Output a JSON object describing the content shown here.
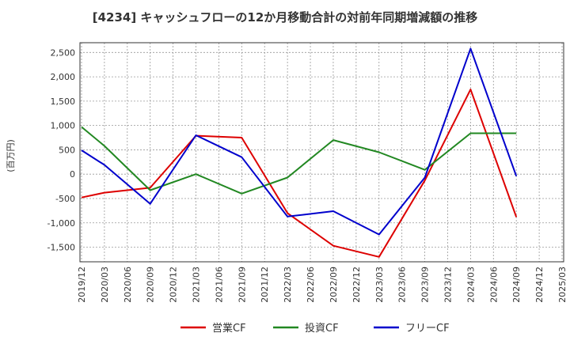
{
  "chart_data": {
    "type": "line",
    "title": "[4234]  キャッシュフローの12か月移動合計の対前年同期増減額の推移",
    "xlabel": "",
    "ylabel": "(百万円)",
    "x": [
      "2019/12",
      "2020/03",
      "2020/06",
      "2020/09",
      "2020/12",
      "2021/03",
      "2021/06",
      "2021/09",
      "2021/12",
      "2022/03",
      "2022/06",
      "2022/09",
      "2022/12",
      "2023/03",
      "2023/06",
      "2023/09",
      "2023/12",
      "2024/03",
      "2024/06",
      "2024/09",
      "2024/12",
      "2025/03"
    ],
    "yticks": [
      2500,
      2000,
      1500,
      1000,
      500,
      0,
      -500,
      -1000,
      -1500
    ],
    "ytick_labels": [
      "2,500",
      "2,000",
      "1,500",
      "1,000",
      "500",
      "0",
      "-500",
      "-1,000",
      "-1,500"
    ],
    "ylim": [
      -1800,
      2700
    ],
    "grid": true,
    "legend_position": "bottom",
    "series": [
      {
        "name": "営業CF",
        "color": "#dd0000",
        "values": [
          -480,
          -380,
          -330,
          -280,
          null,
          790,
          null,
          750,
          null,
          -800,
          null,
          -1470,
          null,
          -1700,
          null,
          -130,
          null,
          1740,
          null,
          -880,
          null,
          null
        ]
      },
      {
        "name": "投資CF",
        "color": "#228822",
        "values": [
          970,
          580,
          null,
          -330,
          null,
          0,
          null,
          -400,
          null,
          -70,
          null,
          700,
          null,
          450,
          null,
          90,
          null,
          840,
          null,
          840,
          null,
          null
        ]
      },
      {
        "name": "フリーCF",
        "color": "#0000cc",
        "values": [
          490,
          190,
          null,
          -610,
          null,
          800,
          null,
          350,
          null,
          -870,
          null,
          -760,
          null,
          -1240,
          null,
          -70,
          null,
          2580,
          null,
          -40,
          null,
          null
        ]
      }
    ]
  }
}
